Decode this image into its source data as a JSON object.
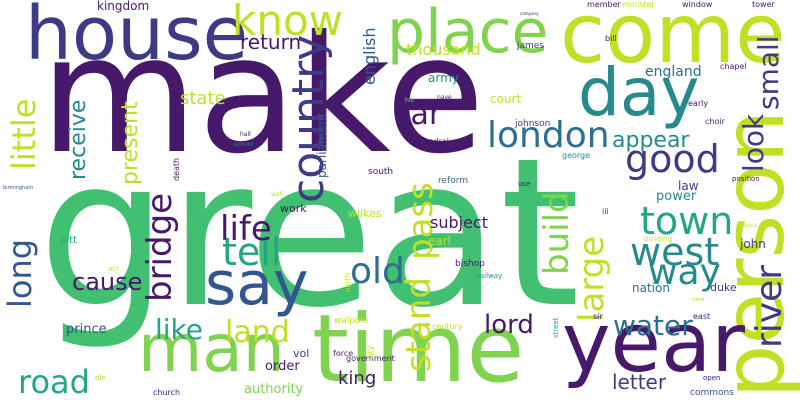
{
  "background_color": "#ffffff",
  "palette": {
    "indigo": "#46196a",
    "dark_purple": "#3f3a86",
    "blue": "#32578f",
    "slate": "#2e6e8e",
    "teal": "#268a8c",
    "sea": "#24a686",
    "green": "#40c070",
    "lime": "#7fd34e",
    "yellow_green": "#c1df25"
  },
  "words": [
    {
      "text": "make",
      "color": "#46196a",
      "weight": 1.0
    },
    {
      "text": "great",
      "color": "#40c070",
      "weight": 0.95
    },
    {
      "text": "time",
      "color": "#7fd34e",
      "weight": 0.62
    },
    {
      "text": "person",
      "color": "#c1df25",
      "weight": 0.55
    },
    {
      "text": "come",
      "color": "#c1df25",
      "weight": 0.52
    },
    {
      "text": "house",
      "color": "#3f3a86",
      "weight": 0.48
    },
    {
      "text": "year",
      "color": "#46196a",
      "weight": 0.5
    },
    {
      "text": "day",
      "color": "#268a8c",
      "weight": 0.42
    },
    {
      "text": "man",
      "color": "#7fd34e",
      "weight": 0.42
    },
    {
      "text": "place",
      "color": "#7fd34e",
      "weight": 0.38
    },
    {
      "text": "say",
      "color": "#32578f",
      "weight": 0.38
    },
    {
      "text": "country",
      "color": "#3f3a86",
      "weight": 0.3
    },
    {
      "text": "london",
      "color": "#2e6e8e",
      "weight": 0.28
    },
    {
      "text": "good",
      "color": "#3f3a86",
      "weight": 0.28
    },
    {
      "text": "look",
      "color": "#3f3a86",
      "weight": 0.22
    },
    {
      "text": "small",
      "color": "#3f3a86",
      "weight": 0.22
    },
    {
      "text": "river",
      "color": "#3f3a86",
      "weight": 0.22
    },
    {
      "text": "know",
      "color": "#c1df25",
      "weight": 0.25
    },
    {
      "text": "town",
      "color": "#24a686",
      "weight": 0.26
    },
    {
      "text": "west",
      "color": "#268a8c",
      "weight": 0.26
    },
    {
      "text": "way",
      "color": "#268a8c",
      "weight": 0.24
    },
    {
      "text": "tell",
      "color": "#24a686",
      "weight": 0.26
    },
    {
      "text": "life",
      "color": "#46196a",
      "weight": 0.24
    },
    {
      "text": "old",
      "color": "#2e6e8e",
      "weight": 0.24
    },
    {
      "text": "large",
      "color": "#c1df25",
      "weight": 0.24
    },
    {
      "text": "build",
      "color": "#7fd34e",
      "weight": 0.24
    },
    {
      "text": "pass",
      "color": "#c1df25",
      "weight": 0.24
    },
    {
      "text": "stand",
      "color": "#c1df25",
      "weight": 0.24
    },
    {
      "text": "road",
      "color": "#24a686",
      "weight": 0.24
    },
    {
      "text": "bridge",
      "color": "#46196a",
      "weight": 0.24
    },
    {
      "text": "little",
      "color": "#c1df25",
      "weight": 0.24
    },
    {
      "text": "long",
      "color": "#32578f",
      "weight": 0.22
    },
    {
      "text": "far",
      "color": "#46196a",
      "weight": 0.22
    },
    {
      "text": "like",
      "color": "#24a686",
      "weight": 0.22
    },
    {
      "text": "land",
      "color": "#c1df25",
      "weight": 0.22
    },
    {
      "text": "water",
      "color": "#2e6e8e",
      "weight": 0.2
    },
    {
      "text": "lord",
      "color": "#46196a",
      "weight": 0.18
    },
    {
      "text": "cause",
      "color": "#46196a",
      "weight": 0.16
    },
    {
      "text": "appear",
      "color": "#268a8c",
      "weight": 0.16
    },
    {
      "text": "return",
      "color": "#46196a",
      "weight": 0.14
    },
    {
      "text": "state",
      "color": "#c1df25",
      "weight": 0.14
    },
    {
      "text": "receive",
      "color": "#268a8c",
      "weight": 0.14
    },
    {
      "text": "present",
      "color": "#c1df25",
      "weight": 0.14
    },
    {
      "text": "letter",
      "color": "#3f3a86",
      "weight": 0.14
    },
    {
      "text": "king",
      "color": "#46196a",
      "weight": 0.12
    },
    {
      "text": "thousand",
      "color": "#c1df25",
      "weight": 0.12
    },
    {
      "text": "english",
      "color": "#32578f",
      "weight": 0.11
    },
    {
      "text": "subject",
      "color": "#46196a",
      "weight": 0.11
    },
    {
      "text": "england",
      "color": "#2e6e8e",
      "weight": 0.1
    },
    {
      "text": "kingdom",
      "color": "#46196a",
      "weight": 0.08
    },
    {
      "text": "army",
      "color": "#268a8c",
      "weight": 0.08
    },
    {
      "text": "court",
      "color": "#c1df25",
      "weight": 0.08
    },
    {
      "text": "parliament",
      "color": "#32578f",
      "weight": 0.09
    },
    {
      "text": "authority",
      "color": "#7fd34e",
      "weight": 0.09
    },
    {
      "text": "prince",
      "color": "#32578f",
      "weight": 0.09
    },
    {
      "text": "order",
      "color": "#46196a",
      "weight": 0.09
    },
    {
      "text": "power",
      "color": "#268a8c",
      "weight": 0.09
    },
    {
      "text": "nation",
      "color": "#2e6e8e",
      "weight": 0.08
    },
    {
      "text": "law",
      "color": "#3f3a86",
      "weight": 0.08
    },
    {
      "text": "earl",
      "color": "#c1df25",
      "weight": 0.08
    },
    {
      "text": "john",
      "color": "#3f3a86",
      "weight": 0.08
    },
    {
      "text": "duke",
      "color": "#3f3a86",
      "weight": 0.07
    },
    {
      "text": "work",
      "color": "#46196a",
      "weight": 0.07
    },
    {
      "text": "vol",
      "color": "#3f3a86",
      "weight": 0.07
    },
    {
      "text": "wilkes",
      "color": "#c1df25",
      "weight": 0.07
    },
    {
      "text": "bishop",
      "color": "#46196a",
      "weight": 0.06
    },
    {
      "text": "johnson",
      "color": "#3f3a86",
      "weight": 0.06
    },
    {
      "text": "reform",
      "color": "#2e6e8e",
      "weight": 0.06
    },
    {
      "text": "south",
      "color": "#46196a",
      "weight": 0.06
    },
    {
      "text": "walpole",
      "color": "#c1df25",
      "weight": 0.06
    },
    {
      "text": "government",
      "color": "#46196a",
      "weight": 0.05
    },
    {
      "text": "commons",
      "color": "#32578f",
      "weight": 0.06
    },
    {
      "text": "century",
      "color": "#c1df25",
      "weight": 0.05
    },
    {
      "text": "james",
      "color": "#3f3a86",
      "weight": 0.06
    },
    {
      "text": "bill",
      "color": "#46196a",
      "weight": 0.05
    },
    {
      "text": "member",
      "color": "#46196a",
      "weight": 0.05
    },
    {
      "text": "minister",
      "color": "#c1df25",
      "weight": 0.05
    },
    {
      "text": "window",
      "color": "#46196a",
      "weight": 0.05
    },
    {
      "text": "tower",
      "color": "#46196a",
      "weight": 0.05
    },
    {
      "text": "chapel",
      "color": "#46196a",
      "weight": 0.05
    },
    {
      "text": "early",
      "color": "#46196a",
      "weight": 0.05
    },
    {
      "text": "choir",
      "color": "#46196a",
      "weight": 0.05
    },
    {
      "text": "position",
      "color": "#46196a",
      "weight": 0.05
    },
    {
      "text": "george",
      "color": "#268a8c",
      "weight": 0.05
    },
    {
      "text": "cathedral",
      "color": "#46196a",
      "weight": 0.05
    },
    {
      "text": "death",
      "color": "#46196a",
      "weight": 0.05
    },
    {
      "text": "pitt",
      "color": "#24a686",
      "weight": 0.06
    },
    {
      "text": "force",
      "color": "#46196a",
      "weight": 0.05
    },
    {
      "text": "city",
      "color": "#c1df25",
      "weight": 0.05
    },
    {
      "text": "east",
      "color": "#46196a",
      "weight": 0.05
    },
    {
      "text": "sir",
      "color": "#46196a",
      "weight": 0.05
    },
    {
      "text": "street",
      "color": "#24a686",
      "weight": 0.04
    },
    {
      "text": "church",
      "color": "#46196a",
      "weight": 0.05
    },
    {
      "text": "open",
      "color": "#46196a",
      "weight": 0.04
    },
    {
      "text": "die",
      "color": "#c1df25",
      "weight": 0.04
    },
    {
      "text": "railway",
      "color": "#268a8c",
      "weight": 0.04
    },
    {
      "text": "north",
      "color": "#c1df25",
      "weight": 0.04
    },
    {
      "text": "building",
      "color": "#c1df25",
      "weight": 0.04
    },
    {
      "text": "iii",
      "color": "#3f3a86",
      "weight": 0.05
    },
    {
      "text": "act",
      "color": "#c1df25",
      "weight": 0.04
    },
    {
      "text": "use",
      "color": "#46196a",
      "weight": 0.04
    },
    {
      "text": "hall",
      "color": "#46196a",
      "weight": 0.03
    },
    {
      "text": "school",
      "color": "#268a8c",
      "weight": 0.03
    },
    {
      "text": "hill",
      "color": "#7fd34e",
      "weight": 0.03
    },
    {
      "text": "nave",
      "color": "#46196a",
      "weight": 0.03
    },
    {
      "text": "wall",
      "color": "#c1df25",
      "weight": 0.03
    },
    {
      "text": "birmingham",
      "color": "#32578f",
      "weight": 0.02
    },
    {
      "text": "company",
      "color": "#46196a",
      "weight": 0.02
    },
    {
      "text": "illustration",
      "color": "#c1df25",
      "weight": 0.02
    },
    {
      "text": "new",
      "color": "#c1df25",
      "weight": 0.03
    }
  ]
}
